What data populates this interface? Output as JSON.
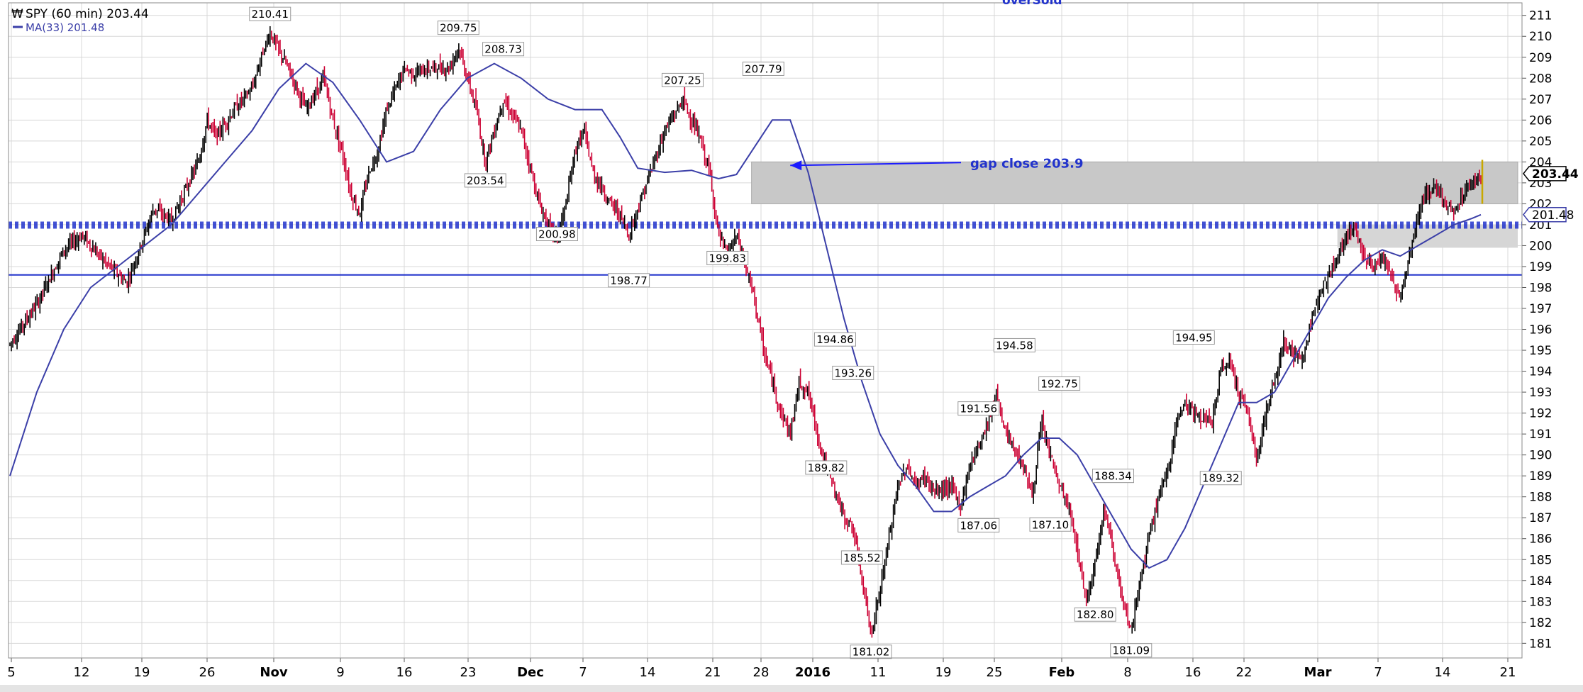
{
  "chart_data": {
    "type": "line",
    "legend": {
      "price_label": "SPY (60 min) 203.44",
      "ma_label": "MA(33) 201.48",
      "placement": "top-left"
    },
    "colors": {
      "price_up": "#000000",
      "price_down": "#cc0033",
      "moving_average": "#3b3fa8",
      "support_line": "#2233cc",
      "gap_zone": "#c8c8c8",
      "grid": "#d8d8d8",
      "annotation": "#1a1aff"
    },
    "y_axis": {
      "ylim": [
        180.3,
        211.6
      ],
      "ticks": [
        181,
        182,
        183,
        184,
        185,
        186,
        187,
        188,
        189,
        190,
        191,
        192,
        193,
        194,
        195,
        196,
        197,
        198,
        199,
        200,
        201,
        202,
        203,
        204,
        205,
        206,
        207,
        208,
        209,
        210,
        211
      ],
      "side": "right"
    },
    "x_axis": {
      "ticks": [
        {
          "label": "5",
          "bold": false
        },
        {
          "label": "12",
          "bold": false
        },
        {
          "label": "19",
          "bold": false
        },
        {
          "label": "26",
          "bold": false
        },
        {
          "label": "Nov",
          "bold": true
        },
        {
          "label": "9",
          "bold": false
        },
        {
          "label": "16",
          "bold": false
        },
        {
          "label": "23",
          "bold": false
        },
        {
          "label": "Dec",
          "bold": true
        },
        {
          "label": "7",
          "bold": false
        },
        {
          "label": "14",
          "bold": false
        },
        {
          "label": "21",
          "bold": false
        },
        {
          "label": "28",
          "bold": false
        },
        {
          "label": "2016",
          "bold": true
        },
        {
          "label": "11",
          "bold": false
        },
        {
          "label": "19",
          "bold": false
        },
        {
          "label": "25",
          "bold": false
        },
        {
          "label": "Feb",
          "bold": true
        },
        {
          "label": "8",
          "bold": false
        },
        {
          "label": "16",
          "bold": false
        },
        {
          "label": "22",
          "bold": false
        },
        {
          "label": "Mar",
          "bold": true
        },
        {
          "label": "7",
          "bold": false
        },
        {
          "label": "14",
          "bold": false
        },
        {
          "label": "21",
          "bold": false
        }
      ]
    },
    "price_path": [
      [
        0,
        195.3
      ],
      [
        3,
        197.2
      ],
      [
        6,
        199.8
      ],
      [
        8,
        200.5
      ],
      [
        10,
        199.5
      ],
      [
        13,
        198.2
      ],
      [
        15,
        200.5
      ],
      [
        16,
        201.8
      ],
      [
        18,
        201.2
      ],
      [
        21,
        204.0
      ],
      [
        22,
        206.0
      ],
      [
        23,
        205.2
      ],
      [
        25,
        206.5
      ],
      [
        27,
        207.5
      ],
      [
        28,
        209.0
      ],
      [
        29,
        210.2
      ],
      [
        30,
        209.3
      ],
      [
        31,
        208.5
      ],
      [
        32,
        207.5
      ],
      [
        33,
        206.5
      ],
      [
        35,
        208.0
      ],
      [
        36,
        206.0
      ],
      [
        37,
        204.5
      ],
      [
        38,
        202.5
      ],
      [
        39,
        201.5
      ],
      [
        40,
        203.5
      ],
      [
        41,
        204.5
      ],
      [
        42,
        206.5
      ],
      [
        43,
        207.5
      ],
      [
        44,
        208.5
      ],
      [
        45,
        208.2
      ],
      [
        47,
        208.5
      ],
      [
        49,
        208.5
      ],
      [
        50,
        209.5
      ],
      [
        51,
        208.0
      ],
      [
        52,
        206.5
      ],
      [
        53,
        204.0
      ],
      [
        54,
        205.5
      ],
      [
        55,
        207.0
      ],
      [
        57,
        205.5
      ],
      [
        59,
        202.0
      ],
      [
        60,
        201.0
      ],
      [
        61,
        200.3
      ],
      [
        62,
        202.0
      ],
      [
        63,
        204.5
      ],
      [
        64,
        205.5
      ],
      [
        65,
        203.5
      ],
      [
        67,
        202.0
      ],
      [
        68,
        201.5
      ],
      [
        69,
        200.5
      ],
      [
        70,
        201.8
      ],
      [
        71,
        203.0
      ],
      [
        73,
        205.5
      ],
      [
        74,
        206.2
      ],
      [
        75,
        207.0
      ],
      [
        76,
        206.0
      ],
      [
        77,
        205.0
      ],
      [
        78,
        203.5
      ],
      [
        79,
        200.5
      ],
      [
        80,
        199.5
      ],
      [
        81,
        200.5
      ],
      [
        82,
        199.0
      ],
      [
        83,
        197.5
      ],
      [
        84,
        195.0
      ],
      [
        85,
        193.5
      ],
      [
        86,
        192.0
      ],
      [
        87,
        191.0
      ],
      [
        88,
        193.5
      ],
      [
        89,
        193.0
      ],
      [
        90,
        191.0
      ],
      [
        91,
        189.5
      ],
      [
        93,
        187.0
      ],
      [
        94,
        186.5
      ],
      [
        95,
        184.0
      ],
      [
        96,
        181.5
      ],
      [
        97,
        183.5
      ],
      [
        98,
        186.0
      ],
      [
        99,
        188.5
      ],
      [
        100,
        189.5
      ],
      [
        101,
        188.5
      ],
      [
        102,
        189.0
      ],
      [
        103,
        188.2
      ],
      [
        105,
        188.5
      ],
      [
        106,
        187.5
      ],
      [
        107,
        189.5
      ],
      [
        109,
        191.5
      ],
      [
        110,
        193.0
      ],
      [
        111,
        191.0
      ],
      [
        113,
        189.5
      ],
      [
        114,
        188.0
      ],
      [
        115,
        191.5
      ],
      [
        116,
        190.0
      ],
      [
        117,
        188.5
      ],
      [
        118,
        187.5
      ],
      [
        119,
        185.5
      ],
      [
        120,
        183.0
      ],
      [
        121,
        185.0
      ],
      [
        122,
        187.5
      ],
      [
        123,
        185.5
      ],
      [
        124,
        183.0
      ],
      [
        125,
        181.5
      ],
      [
        126,
        184.0
      ],
      [
        127,
        186.0
      ],
      [
        128,
        188.0
      ],
      [
        129,
        189.0
      ],
      [
        130,
        191.5
      ],
      [
        131,
        192.5
      ],
      [
        132,
        192.0
      ],
      [
        134,
        191.5
      ],
      [
        135,
        194.0
      ],
      [
        136,
        194.5
      ],
      [
        137,
        193.0
      ],
      [
        138,
        192.0
      ],
      [
        139,
        189.8
      ],
      [
        140,
        192.0
      ],
      [
        141,
        193.5
      ],
      [
        142,
        195.5
      ],
      [
        143,
        194.8
      ],
      [
        144,
        194.5
      ],
      [
        145,
        196.0
      ],
      [
        146,
        198.0
      ],
      [
        147,
        198.5
      ],
      [
        148,
        199.5
      ],
      [
        149,
        200.5
      ],
      [
        150,
        200.8
      ],
      [
        151,
        199.5
      ],
      [
        152,
        199.0
      ],
      [
        153,
        199.5
      ],
      [
        154,
        198.5
      ],
      [
        155,
        197.5
      ],
      [
        156,
        199.5
      ],
      [
        157,
        201.5
      ],
      [
        158,
        202.5
      ],
      [
        159,
        202.8
      ],
      [
        160,
        202.0
      ],
      [
        161,
        201.5
      ],
      [
        162,
        202.5
      ],
      [
        163,
        203.0
      ],
      [
        164,
        203.44
      ]
    ],
    "ma_path": [
      [
        0,
        189.0
      ],
      [
        3,
        193.0
      ],
      [
        6,
        196.0
      ],
      [
        9,
        198.0
      ],
      [
        12,
        199.0
      ],
      [
        15,
        200.0
      ],
      [
        18,
        201.0
      ],
      [
        21,
        202.5
      ],
      [
        24,
        204.0
      ],
      [
        27,
        205.5
      ],
      [
        30,
        207.5
      ],
      [
        33,
        208.7
      ],
      [
        36,
        207.8
      ],
      [
        39,
        206.0
      ],
      [
        42,
        204.0
      ],
      [
        45,
        204.5
      ],
      [
        48,
        206.5
      ],
      [
        51,
        208.0
      ],
      [
        54,
        208.7
      ],
      [
        57,
        208.0
      ],
      [
        60,
        207.0
      ],
      [
        63,
        206.5
      ],
      [
        66,
        206.5
      ],
      [
        68,
        205.2
      ],
      [
        70,
        203.7
      ],
      [
        73,
        203.5
      ],
      [
        76,
        203.6
      ],
      [
        79,
        203.2
      ],
      [
        81,
        203.4
      ],
      [
        83,
        204.7
      ],
      [
        85,
        206.0
      ],
      [
        87,
        206.0
      ],
      [
        89,
        203.5
      ],
      [
        91,
        200.0
      ],
      [
        93,
        196.5
      ],
      [
        95,
        193.5
      ],
      [
        97,
        191.0
      ],
      [
        99,
        189.5
      ],
      [
        101,
        188.5
      ],
      [
        103,
        187.3
      ],
      [
        105,
        187.3
      ],
      [
        107,
        188.0
      ],
      [
        109,
        188.5
      ],
      [
        111,
        189.0
      ],
      [
        113,
        190.0
      ],
      [
        115,
        190.8
      ],
      [
        117,
        190.8
      ],
      [
        119,
        190.0
      ],
      [
        121,
        188.5
      ],
      [
        123,
        187.0
      ],
      [
        125,
        185.5
      ],
      [
        127,
        184.6
      ],
      [
        129,
        185.0
      ],
      [
        131,
        186.5
      ],
      [
        133,
        188.5
      ],
      [
        135,
        190.5
      ],
      [
        137,
        192.5
      ],
      [
        139,
        192.5
      ],
      [
        141,
        193.0
      ],
      [
        143,
        194.5
      ],
      [
        145,
        196.0
      ],
      [
        147,
        197.5
      ],
      [
        149,
        198.5
      ],
      [
        151,
        199.3
      ],
      [
        153,
        199.8
      ],
      [
        155,
        199.5
      ],
      [
        157,
        200.0
      ],
      [
        159,
        200.5
      ],
      [
        161,
        201.0
      ],
      [
        163,
        201.3
      ],
      [
        164,
        201.48
      ]
    ],
    "peaks_troughs": [
      {
        "label": "210.41",
        "at": 29,
        "price": 210.41,
        "pos": "above"
      },
      {
        "label": "200.98",
        "at": 61,
        "price": 200.98,
        "pos": "below"
      },
      {
        "label": "209.75",
        "at": 50,
        "price": 209.75,
        "pos": "above"
      },
      {
        "label": "208.73",
        "at": 55,
        "price": 208.73,
        "pos": "above"
      },
      {
        "label": "203.54",
        "at": 53,
        "price": 203.54,
        "pos": "below"
      },
      {
        "label": "198.77",
        "at": 69,
        "price": 198.77,
        "pos": "below"
      },
      {
        "label": "207.25",
        "at": 75,
        "price": 207.25,
        "pos": "above"
      },
      {
        "label": "199.83",
        "at": 80,
        "price": 199.83,
        "pos": "below"
      },
      {
        "label": "207.79",
        "at": 84,
        "price": 207.79,
        "pos": "above"
      },
      {
        "label": "194.86",
        "at": 92,
        "price": 194.86,
        "pos": "above"
      },
      {
        "label": "193.26",
        "at": 94,
        "price": 193.26,
        "pos": "above"
      },
      {
        "label": "189.82",
        "at": 91,
        "price": 189.82,
        "pos": "below"
      },
      {
        "label": "185.52",
        "at": 95,
        "price": 185.52,
        "pos": "below"
      },
      {
        "label": "181.02",
        "at": 96,
        "price": 181.02,
        "pos": "below"
      },
      {
        "label": "191.56",
        "at": 108,
        "price": 191.56,
        "pos": "above"
      },
      {
        "label": "187.06",
        "at": 108,
        "price": 187.06,
        "pos": "below"
      },
      {
        "label": "194.58",
        "at": 112,
        "price": 194.58,
        "pos": "above"
      },
      {
        "label": "192.75",
        "at": 117,
        "price": 192.75,
        "pos": "above"
      },
      {
        "label": "187.10",
        "at": 116,
        "price": 187.1,
        "pos": "below"
      },
      {
        "label": "188.34",
        "at": 123,
        "price": 188.34,
        "pos": "above"
      },
      {
        "label": "182.80",
        "at": 121,
        "price": 182.8,
        "pos": "below"
      },
      {
        "label": "181.09",
        "at": 125,
        "price": 181.09,
        "pos": "below"
      },
      {
        "label": "194.95",
        "at": 132,
        "price": 194.95,
        "pos": "above"
      },
      {
        "label": "189.32",
        "at": 135,
        "price": 189.32,
        "pos": "below"
      }
    ],
    "horizontal_lines": [
      {
        "price": 200.98,
        "style": "dotted-thick"
      },
      {
        "price": 198.6,
        "style": "solid"
      }
    ],
    "gap_zone": {
      "from_bar": 83,
      "to_bar": 164,
      "top": 204.0,
      "bottom": 202.0
    },
    "extra_zone": {
      "from_bar": 148,
      "to_bar": 164,
      "top": 201.0,
      "bottom": 199.9
    },
    "gap_annotation": {
      "text": "gap close 203.9",
      "price": 203.9,
      "arrow_from_bar": 98,
      "arrow_to_bar": 87
    },
    "current_price": {
      "label": "203.44",
      "price": 203.44
    },
    "current_ma": {
      "label": "201.48",
      "price": 201.48
    },
    "top_cut_text": "overSold"
  }
}
